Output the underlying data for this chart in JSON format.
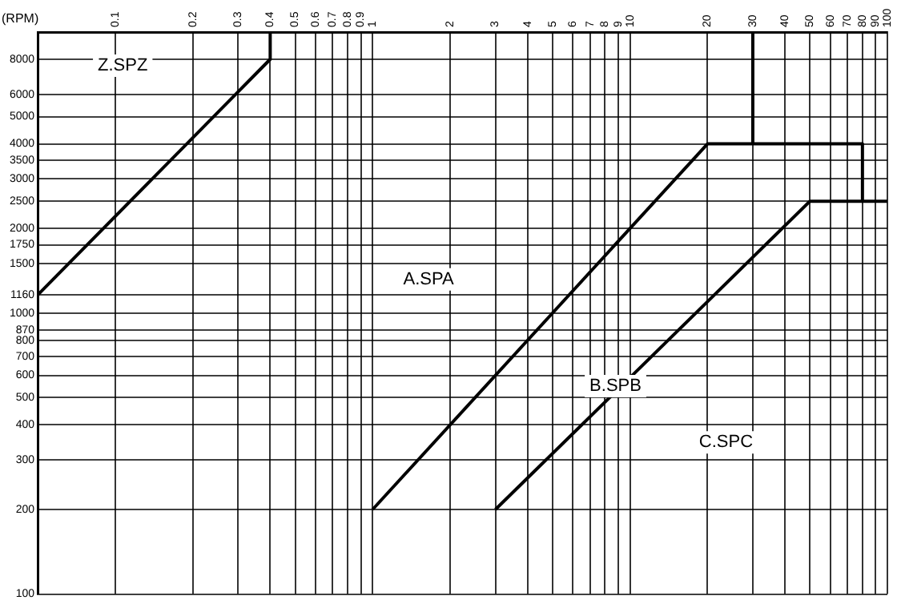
{
  "chart_data": {
    "type": "line",
    "ylabel": "(RPM)",
    "series": [
      {
        "color": "#000000",
        "x": [
          0.05,
          0.4,
          0.4
        ],
        "values": [
          1160,
          8000,
          10000
        ]
      },
      {
        "color": "#000000",
        "x": [
          1,
          20,
          80,
          80
        ],
        "values": [
          200,
          4000,
          4000,
          2500
        ]
      },
      {
        "color": "#000000",
        "x": [
          30,
          30
        ],
        "values": [
          4000,
          10000
        ]
      },
      {
        "color": "#000000",
        "x": [
          3,
          50,
          100
        ],
        "values": [
          200,
          2500,
          2500
        ]
      }
    ],
    "xlim": [
      0.05,
      100
    ],
    "xticks": [
      0.1,
      0.2,
      0.3,
      0.4,
      0.5,
      0.6,
      0.7,
      0.8,
      0.9,
      1,
      2,
      3,
      4,
      5,
      6,
      7,
      8,
      9,
      10,
      20,
      30,
      40,
      50,
      60,
      70,
      80,
      90,
      100
    ],
    "ylim": [
      100,
      10000
    ],
    "yticks": [
      100,
      200,
      300,
      400,
      500,
      600,
      700,
      800,
      870,
      1000,
      1160,
      1500,
      1750,
      2000,
      2500,
      3000,
      3500,
      4000,
      5000,
      6000,
      8000
    ],
    "log": "xy",
    "grid": true,
    "legend": false,
    "marker": "none",
    "line_style": "solid",
    "annotations": [
      "Z.SPZ",
      "A.SPA",
      "B.SPB",
      "C.SPC"
    ]
  }
}
